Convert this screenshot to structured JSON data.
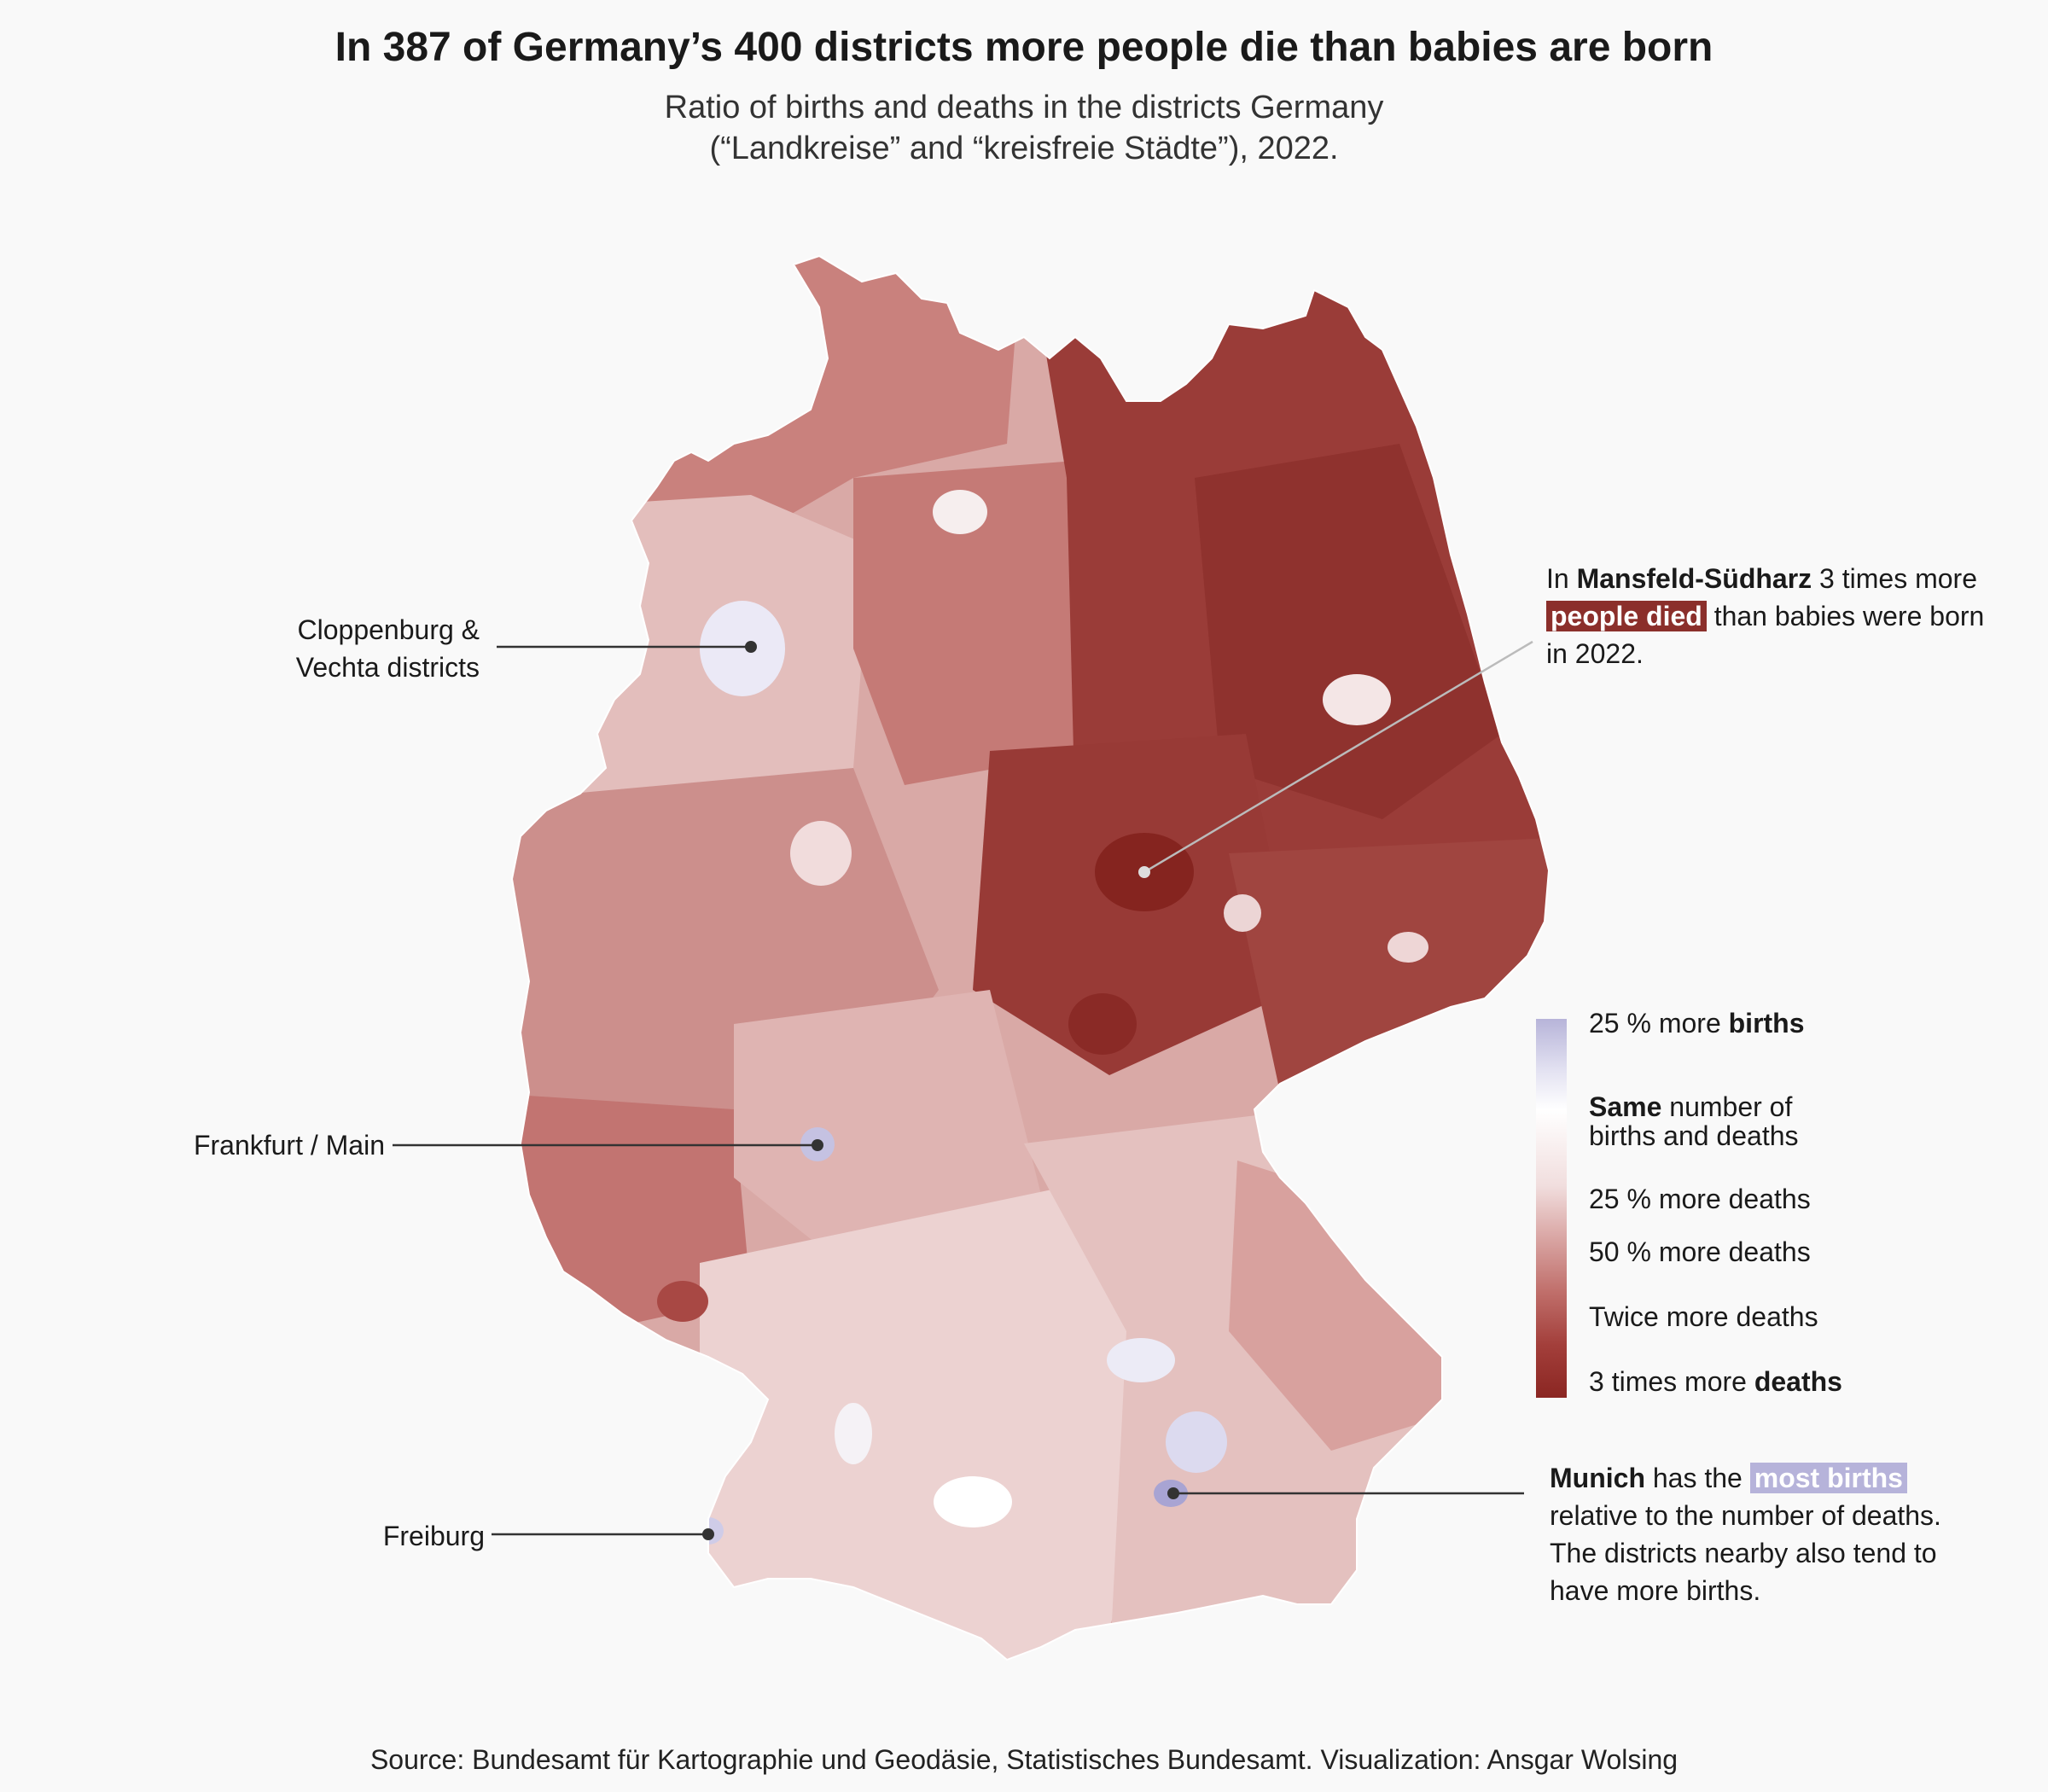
{
  "title": "In 387 of Germany’s 400 districts more people die than babies are born",
  "subtitle": {
    "line1": "Ratio of births and deaths in the districts Germany",
    "line2": "(“Landkreise” and “kreisfreie Städte”), 2022."
  },
  "annotations": {
    "cloppenburg": {
      "line1": "Cloppenburg &",
      "line2": "Vechta districts"
    },
    "frankfurt": {
      "text": "Frankfurt / Main"
    },
    "freiburg": {
      "text": "Freiburg"
    },
    "mansfeld": {
      "prefix": "In ",
      "bold": "Mansfeld-Südharz",
      "middle": " 3 times more",
      "highlight": "people died",
      "rest": " than babies were born",
      "line3": "in 2022."
    },
    "munich": {
      "bold": "Munich",
      "middle": " has the ",
      "highlight": "most births",
      "line2": "relative to the number of deaths.",
      "line3": "The districts nearby also tend to",
      "line4": "have more births."
    }
  },
  "legend": {
    "births_25_prefix": "25 % more ",
    "births_25_bold": "births",
    "same_bold": "Same",
    "same_rest": " number of",
    "same_line2": "births and deaths",
    "deaths_25": "25 % more deaths",
    "deaths_50": "50 % more deaths",
    "deaths_twice": "Twice more deaths",
    "deaths_3_prefix": "3 times more ",
    "deaths_3_bold": "deaths"
  },
  "colors": {
    "more_births": "#b7b4d9",
    "equal": "#ffffff",
    "deaths_25": "#ebcaca",
    "deaths_50": "#d49693",
    "deaths_twice": "#b5534f",
    "deaths_3x": "#8b2622"
  },
  "source": "Source: Bundesamt für Kartographie und Geodäsie, Statistisches Bundesamt. Visualization: Ansgar Wolsing"
}
